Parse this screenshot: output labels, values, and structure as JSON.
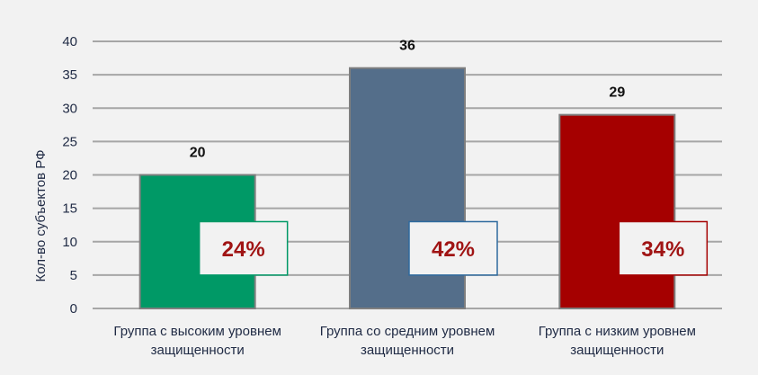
{
  "chart_data": {
    "type": "bar",
    "ylabel": "Кол-во субъектов РФ",
    "ylim": [
      0,
      40
    ],
    "yticks": [
      0,
      5,
      10,
      15,
      20,
      25,
      30,
      35,
      40
    ],
    "grid": true,
    "categories": [
      [
        "Группа с высоким уровнем",
        "защищенности"
      ],
      [
        "Группа со средним уровнем",
        "защищенности"
      ],
      [
        "Группа с низким уровнем",
        "защищенности"
      ]
    ],
    "values": [
      20,
      36,
      29
    ],
    "shares": [
      "24%",
      "42%",
      "34%"
    ],
    "colors": [
      "#009966",
      "#546e8a",
      "#a50000"
    ],
    "share_box_borders": [
      "#009966",
      "#2e6a9e",
      "#a50000"
    ]
  }
}
